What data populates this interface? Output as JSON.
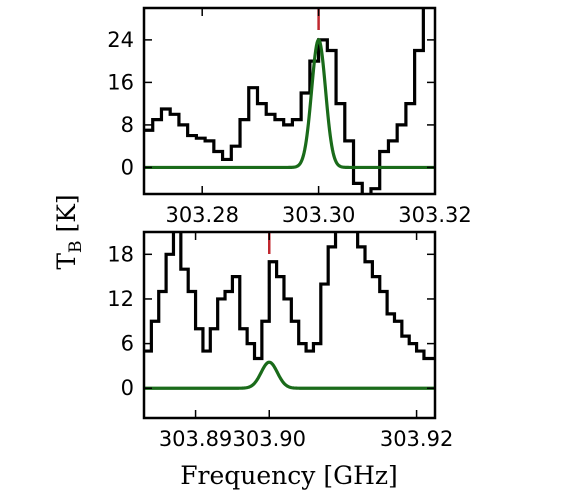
{
  "chart_data": [
    {
      "type": "line",
      "panel": "top",
      "xlim": [
        303.27,
        303.32
      ],
      "ylim": [
        -5,
        30
      ],
      "x_ticks": [
        "303.28",
        "303.30",
        "303.32"
      ],
      "x_tick_values": [
        303.28,
        303.3,
        303.32
      ],
      "y_ticks": [
        "0",
        "8",
        "16",
        "24"
      ],
      "y_tick_values": [
        0,
        8,
        16,
        24
      ],
      "marker_x": 303.3,
      "series": [
        {
          "kind": "observed-step",
          "color": "#000000",
          "x": [
            303.27,
            303.2715,
            303.273,
            303.2745,
            303.276,
            303.2775,
            303.279,
            303.2805,
            303.282,
            303.2835,
            303.285,
            303.2865,
            303.288,
            303.2895,
            303.291,
            303.2925,
            303.294,
            303.2955,
            303.297,
            303.2985,
            303.3,
            303.3015,
            303.303,
            303.3045,
            303.306,
            303.3075,
            303.309,
            303.3105,
            303.312,
            303.3135,
            303.315,
            303.3165,
            303.318
          ],
          "y": [
            7,
            9,
            11,
            10,
            8,
            6,
            5.5,
            5,
            3,
            1.5,
            4,
            9,
            15,
            12,
            10,
            9,
            8,
            9,
            14,
            20,
            24,
            22,
            12,
            5,
            -3,
            -10,
            -4,
            3,
            5,
            8,
            12,
            22,
            34
          ]
        },
        {
          "kind": "gaussian-model",
          "color": "#1a6b1a",
          "amplitude": 24,
          "center": 303.3,
          "sigma": 0.0012
        }
      ]
    },
    {
      "type": "line",
      "panel": "bottom",
      "xlim": [
        303.883,
        303.9225
      ],
      "ylim": [
        -4,
        21
      ],
      "x_ticks": [
        "303.89",
        "303.90",
        "303.92"
      ],
      "x_tick_values": [
        303.89,
        303.9,
        303.92
      ],
      "y_ticks": [
        "0",
        "6",
        "12",
        "18"
      ],
      "y_tick_values": [
        0,
        6,
        12,
        18
      ],
      "marker_x": 303.9,
      "series": [
        {
          "kind": "observed-step",
          "color": "#000000",
          "x": [
            303.883,
            303.884,
            303.885,
            303.886,
            303.887,
            303.888,
            303.889,
            303.89,
            303.891,
            303.892,
            303.893,
            303.894,
            303.895,
            303.896,
            303.897,
            303.898,
            303.899,
            303.9,
            303.901,
            303.902,
            303.903,
            303.904,
            303.905,
            303.906,
            303.907,
            303.908,
            303.909,
            303.91,
            303.911,
            303.912,
            303.913,
            303.914,
            303.915,
            303.916,
            303.917,
            303.918,
            303.919,
            303.92,
            303.921,
            303.922
          ],
          "y": [
            5,
            9,
            13,
            18,
            24,
            16,
            13,
            8,
            5,
            8,
            12,
            13,
            15,
            8,
            6,
            4,
            9,
            17,
            15,
            12,
            9,
            6,
            5,
            6,
            14,
            19,
            23,
            25,
            22,
            19,
            17,
            15,
            13,
            10,
            9,
            7,
            6,
            5,
            4,
            4
          ]
        },
        {
          "kind": "gaussian-model",
          "color": "#1a6b1a",
          "amplitude": 3.5,
          "center": 303.9,
          "sigma": 0.0011
        }
      ]
    }
  ],
  "labels": {
    "ylabel_main": "T",
    "ylabel_sub": "B",
    "ylabel_unit": " [K]",
    "xlabel": "Frequency [GHz]"
  },
  "colors": {
    "observed": "#000000",
    "model": "#1a6b1a",
    "marker": "#c0282f"
  }
}
